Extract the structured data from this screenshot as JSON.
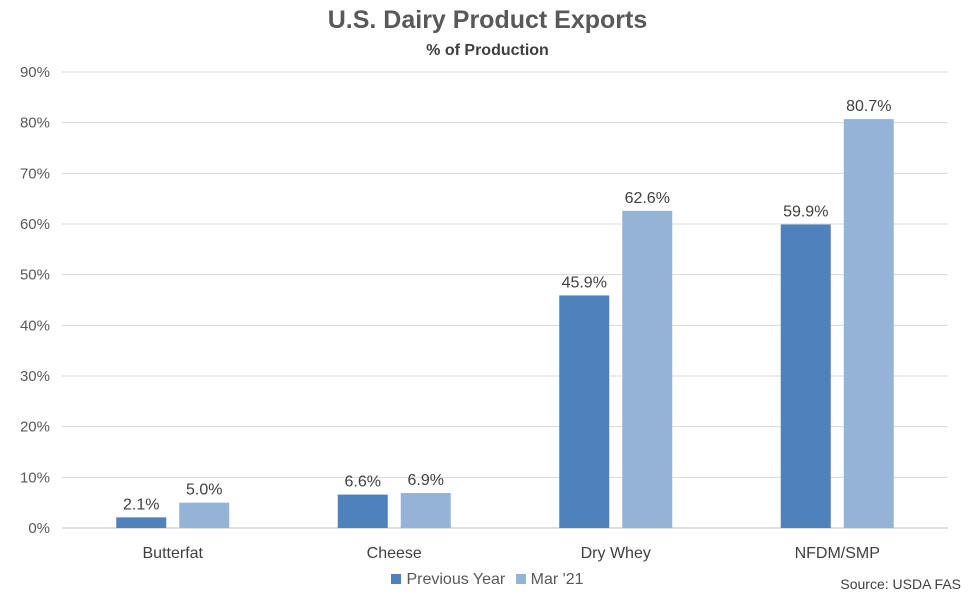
{
  "chart_data": {
    "type": "bar",
    "title": "U.S. Dairy Product Exports",
    "subtitle": "% of Production",
    "categories": [
      "Butterfat",
      "Cheese",
      "Dry Whey",
      "NFDM/SMP"
    ],
    "series": [
      {
        "name": "Previous Year",
        "values": [
          2.1,
          6.6,
          45.9,
          59.9
        ],
        "labels": [
          "2.1%",
          "6.6%",
          "45.9%",
          "59.9%"
        ],
        "color": "#4f81bd"
      },
      {
        "name": "Mar '21",
        "values": [
          5.0,
          6.9,
          62.6,
          80.7
        ],
        "labels": [
          "5.0%",
          "6.9%",
          "62.6%",
          "80.7%"
        ],
        "color": "#95b3d7"
      }
    ],
    "ylim": [
      0,
      90
    ],
    "yticks": [
      0,
      10,
      20,
      30,
      40,
      50,
      60,
      70,
      80,
      90
    ],
    "ytick_labels": [
      "0%",
      "10%",
      "20%",
      "30%",
      "40%",
      "50%",
      "60%",
      "70%",
      "80%",
      "90%"
    ],
    "grid": true,
    "legend_position": "bottom",
    "source": "Source: USDA FAS"
  }
}
